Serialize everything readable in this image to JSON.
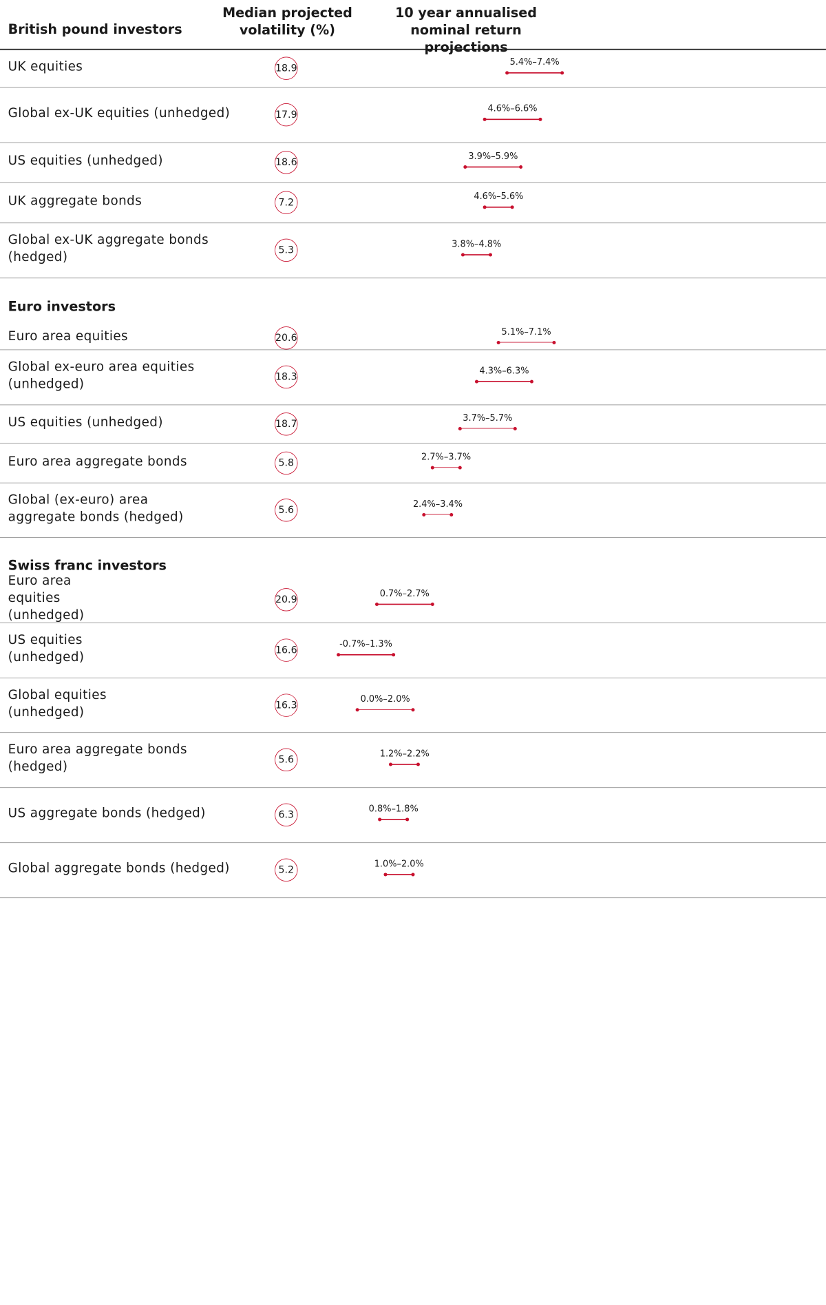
{
  "chart_data": {
    "type": "table",
    "headers": {
      "col1": "British pound investors",
      "col2": "Median projected volatility (%)",
      "col3": "10 year annualised nominal return projections"
    },
    "sections": [
      {
        "title": "British pound investors",
        "rows": [
          {
            "label": "UK equities",
            "vol": "18.9",
            "low": 5.4,
            "high": 7.4,
            "range_label": "5.4%–7.4%"
          },
          {
            "label": "Global ex-UK equities (unhedged)",
            "vol": "17.9",
            "low": 4.6,
            "high": 6.6,
            "range_label": "4.6%–6.6%"
          },
          {
            "label": "US equities (unhedged)",
            "vol": "18.6",
            "low": 3.9,
            "high": 5.9,
            "range_label": "3.9%–5.9%"
          },
          {
            "label": "UK aggregate bonds",
            "vol": "7.2",
            "low": 4.6,
            "high": 5.6,
            "range_label": "4.6%–5.6%"
          },
          {
            "label": "Global ex-UK aggregate bonds (hedged)",
            "vol": "5.3",
            "low": 3.8,
            "high": 4.8,
            "range_label": "3.8%–4.8%"
          }
        ]
      },
      {
        "title": "Euro investors",
        "rows": [
          {
            "label": "Euro area equities",
            "vol": "20.6",
            "low": 5.1,
            "high": 7.1,
            "range_label": "5.1%–7.1%"
          },
          {
            "label": "Global ex-euro area equities (unhedged)",
            "vol": "18.3",
            "low": 4.3,
            "high": 6.3,
            "range_label": "4.3%–6.3%"
          },
          {
            "label": "US equities (unhedged)",
            "vol": "18.7",
            "low": 3.7,
            "high": 5.7,
            "range_label": "3.7%–5.7%"
          },
          {
            "label": "Euro area aggregate bonds",
            "vol": "5.8",
            "low": 2.7,
            "high": 3.7,
            "range_label": "2.7%–3.7%"
          },
          {
            "label": "Global (ex-euro) area aggregate bonds (hedged)",
            "vol": "5.6",
            "low": 2.4,
            "high": 3.4,
            "range_label": "2.4%–3.4%"
          }
        ]
      },
      {
        "title": "Swiss franc investors",
        "rows": [
          {
            "label": "Euro area equities (unhedged)",
            "vol": "20.9",
            "low": 0.7,
            "high": 2.7,
            "range_label": "0.7%–2.7%"
          },
          {
            "label": "US equities (unhedged)",
            "vol": "16.6",
            "low": -0.7,
            "high": 1.3,
            "range_label": "-0.7%–1.3%"
          },
          {
            "label": "Global equities (unhedged)",
            "vol": "16.3",
            "low": 0.0,
            "high": 2.0,
            "range_label": "0.0%–2.0%"
          },
          {
            "label": "Euro area aggregate bonds (hedged)",
            "vol": "5.6",
            "low": 1.2,
            "high": 2.2,
            "range_label": "1.2%–2.2%"
          },
          {
            "label": "US aggregate bonds (hedged)",
            "vol": "6.3",
            "low": 0.8,
            "high": 1.8,
            "range_label": "0.8%–1.8%"
          },
          {
            "label": "Global aggregate bonds (hedged)",
            "vol": "5.2",
            "low": 1.0,
            "high": 2.0,
            "range_label": "1.0%–2.0%"
          }
        ]
      }
    ],
    "colors": {
      "accent": "#c8102e",
      "text": "#1a1a1a"
    }
  }
}
